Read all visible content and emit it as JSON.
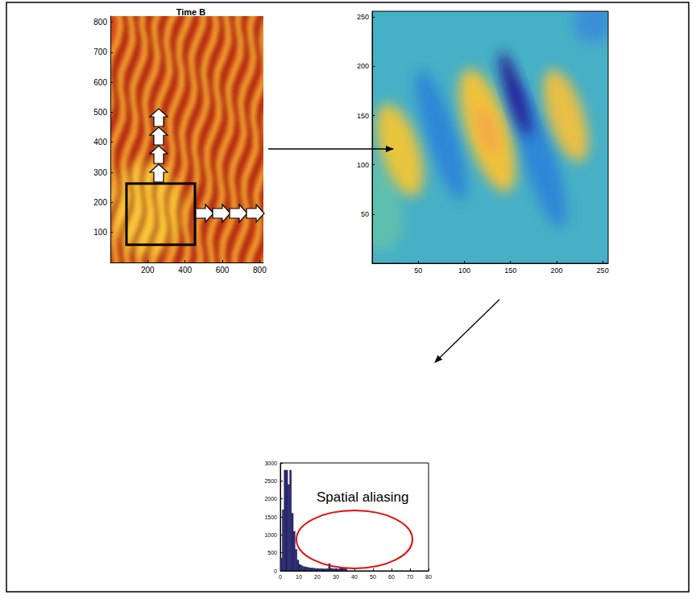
{
  "image_panels": [
    {
      "title": "Time B",
      "xlim": [
        0,
        820
      ],
      "xticks": [
        200,
        400,
        600,
        800
      ],
      "ylim": [
        0,
        820
      ],
      "yticks": [
        100,
        200,
        300,
        400,
        500,
        600,
        700,
        800
      ]
    },
    {
      "xlim": [
        0,
        256
      ],
      "xticks": [
        50,
        100,
        150,
        200,
        250
      ],
      "ylim": [
        0,
        256
      ],
      "yticks": [
        50,
        100,
        150,
        200,
        250
      ]
    }
  ],
  "chart_data": {
    "type": "histogram",
    "bins": [
      0,
      1,
      2,
      3,
      4,
      5,
      6,
      7,
      8,
      9,
      10,
      11,
      12,
      13,
      14,
      15,
      16,
      17,
      18,
      19,
      20,
      21,
      22,
      23,
      24,
      25,
      26,
      27,
      28,
      29,
      30,
      31,
      32,
      33,
      34,
      35,
      36
    ],
    "counts": [
      350,
      1700,
      2800,
      2800,
      2400,
      2800,
      1600,
      1100,
      600,
      300,
      180,
      150,
      120,
      110,
      100,
      90,
      80,
      80,
      70,
      60,
      60,
      60,
      60,
      55,
      55,
      60,
      200,
      70,
      60,
      60,
      55,
      50,
      80,
      70,
      60,
      60
    ],
    "color": "#2b2b80",
    "xlim": [
      0,
      80
    ],
    "xticks": [
      0,
      10,
      20,
      30,
      40,
      50,
      60,
      70,
      80
    ],
    "ylim": [
      0,
      3000
    ],
    "yticks": [
      0,
      500,
      1000,
      1500,
      2000,
      2500,
      3000
    ],
    "grid": false,
    "annotations": [
      "Spatial aliasing"
    ]
  }
}
